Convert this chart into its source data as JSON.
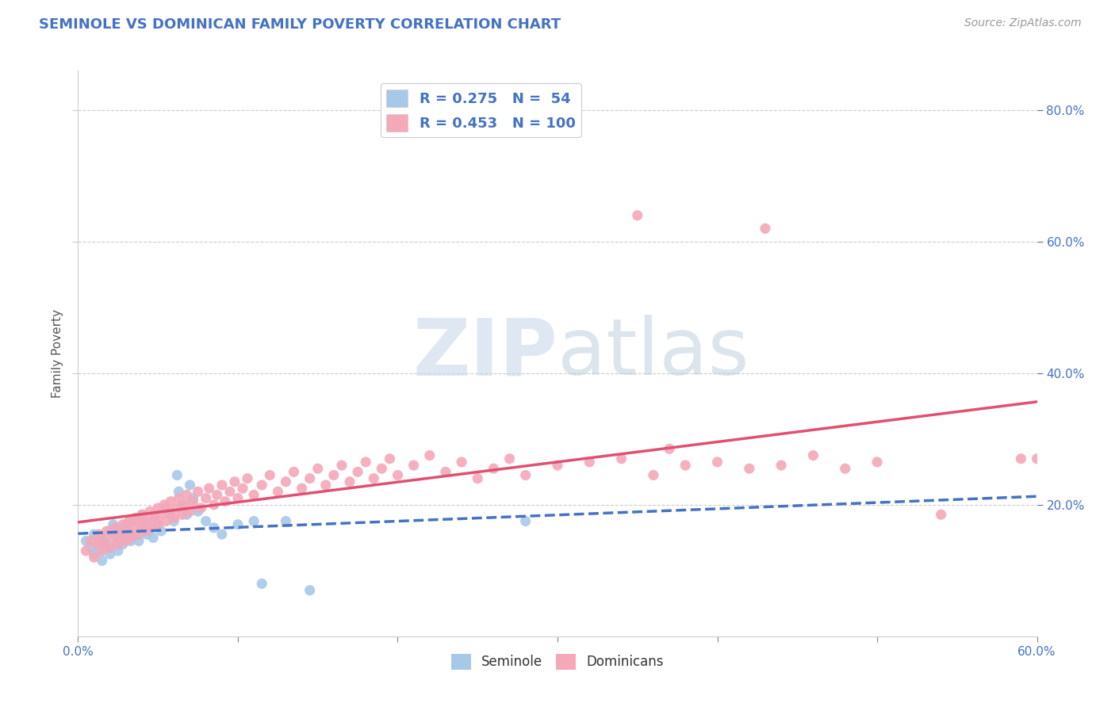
{
  "title": "SEMINOLE VS DOMINICAN FAMILY POVERTY CORRELATION CHART",
  "source": "Source: ZipAtlas.com",
  "ylabel": "Family Poverty",
  "xlim": [
    0.0,
    0.6
  ],
  "ylim": [
    0.0,
    0.86
  ],
  "yticks": [
    0.2,
    0.4,
    0.6,
    0.8
  ],
  "xticks": [
    0.0,
    0.1,
    0.2,
    0.3,
    0.4,
    0.5,
    0.6
  ],
  "seminole_color": "#a8c8e8",
  "dominican_color": "#f4a8b8",
  "trendline_seminole_color": "#4472c4",
  "trendline_dominican_color": "#e05070",
  "watermark_zip": "ZIP",
  "watermark_atlas": "atlas",
  "seminole_R": 0.275,
  "seminole_N": 54,
  "dominican_R": 0.453,
  "dominican_N": 100,
  "seminole_points": [
    [
      0.005,
      0.145
    ],
    [
      0.008,
      0.135
    ],
    [
      0.01,
      0.155
    ],
    [
      0.01,
      0.125
    ],
    [
      0.012,
      0.14
    ],
    [
      0.013,
      0.13
    ],
    [
      0.015,
      0.15
    ],
    [
      0.015,
      0.115
    ],
    [
      0.017,
      0.145
    ],
    [
      0.018,
      0.135
    ],
    [
      0.02,
      0.16
    ],
    [
      0.02,
      0.125
    ],
    [
      0.022,
      0.17
    ],
    [
      0.023,
      0.155
    ],
    [
      0.024,
      0.14
    ],
    [
      0.025,
      0.165
    ],
    [
      0.025,
      0.13
    ],
    [
      0.027,
      0.155
    ],
    [
      0.028,
      0.14
    ],
    [
      0.03,
      0.17
    ],
    [
      0.03,
      0.15
    ],
    [
      0.032,
      0.16
    ],
    [
      0.033,
      0.145
    ],
    [
      0.035,
      0.175
    ],
    [
      0.036,
      0.155
    ],
    [
      0.038,
      0.145
    ],
    [
      0.04,
      0.165
    ],
    [
      0.04,
      0.185
    ],
    [
      0.042,
      0.175
    ],
    [
      0.043,
      0.155
    ],
    [
      0.045,
      0.165
    ],
    [
      0.047,
      0.15
    ],
    [
      0.048,
      0.18
    ],
    [
      0.05,
      0.17
    ],
    [
      0.052,
      0.16
    ],
    [
      0.055,
      0.195
    ],
    [
      0.058,
      0.185
    ],
    [
      0.06,
      0.175
    ],
    [
      0.062,
      0.245
    ],
    [
      0.063,
      0.22
    ],
    [
      0.065,
      0.2
    ],
    [
      0.068,
      0.185
    ],
    [
      0.07,
      0.23
    ],
    [
      0.072,
      0.21
    ],
    [
      0.075,
      0.19
    ],
    [
      0.08,
      0.175
    ],
    [
      0.085,
      0.165
    ],
    [
      0.09,
      0.155
    ],
    [
      0.1,
      0.17
    ],
    [
      0.11,
      0.175
    ],
    [
      0.115,
      0.08
    ],
    [
      0.13,
      0.175
    ],
    [
      0.145,
      0.07
    ],
    [
      0.28,
      0.175
    ]
  ],
  "dominican_points": [
    [
      0.005,
      0.13
    ],
    [
      0.008,
      0.145
    ],
    [
      0.01,
      0.12
    ],
    [
      0.012,
      0.14
    ],
    [
      0.013,
      0.155
    ],
    [
      0.015,
      0.13
    ],
    [
      0.016,
      0.145
    ],
    [
      0.018,
      0.16
    ],
    [
      0.02,
      0.135
    ],
    [
      0.022,
      0.15
    ],
    [
      0.023,
      0.165
    ],
    [
      0.025,
      0.14
    ],
    [
      0.026,
      0.155
    ],
    [
      0.028,
      0.17
    ],
    [
      0.03,
      0.145
    ],
    [
      0.03,
      0.16
    ],
    [
      0.032,
      0.175
    ],
    [
      0.033,
      0.15
    ],
    [
      0.035,
      0.165
    ],
    [
      0.036,
      0.18
    ],
    [
      0.038,
      0.155
    ],
    [
      0.04,
      0.17
    ],
    [
      0.04,
      0.185
    ],
    [
      0.042,
      0.16
    ],
    [
      0.043,
      0.175
    ],
    [
      0.045,
      0.19
    ],
    [
      0.046,
      0.165
    ],
    [
      0.048,
      0.18
    ],
    [
      0.05,
      0.195
    ],
    [
      0.05,
      0.17
    ],
    [
      0.052,
      0.185
    ],
    [
      0.054,
      0.2
    ],
    [
      0.055,
      0.175
    ],
    [
      0.057,
      0.19
    ],
    [
      0.058,
      0.205
    ],
    [
      0.06,
      0.18
    ],
    [
      0.062,
      0.195
    ],
    [
      0.063,
      0.21
    ],
    [
      0.065,
      0.185
    ],
    [
      0.067,
      0.2
    ],
    [
      0.068,
      0.215
    ],
    [
      0.07,
      0.19
    ],
    [
      0.072,
      0.205
    ],
    [
      0.075,
      0.22
    ],
    [
      0.077,
      0.195
    ],
    [
      0.08,
      0.21
    ],
    [
      0.082,
      0.225
    ],
    [
      0.085,
      0.2
    ],
    [
      0.087,
      0.215
    ],
    [
      0.09,
      0.23
    ],
    [
      0.092,
      0.205
    ],
    [
      0.095,
      0.22
    ],
    [
      0.098,
      0.235
    ],
    [
      0.1,
      0.21
    ],
    [
      0.103,
      0.225
    ],
    [
      0.106,
      0.24
    ],
    [
      0.11,
      0.215
    ],
    [
      0.115,
      0.23
    ],
    [
      0.12,
      0.245
    ],
    [
      0.125,
      0.22
    ],
    [
      0.13,
      0.235
    ],
    [
      0.135,
      0.25
    ],
    [
      0.14,
      0.225
    ],
    [
      0.145,
      0.24
    ],
    [
      0.15,
      0.255
    ],
    [
      0.155,
      0.23
    ],
    [
      0.16,
      0.245
    ],
    [
      0.165,
      0.26
    ],
    [
      0.17,
      0.235
    ],
    [
      0.175,
      0.25
    ],
    [
      0.18,
      0.265
    ],
    [
      0.185,
      0.24
    ],
    [
      0.19,
      0.255
    ],
    [
      0.195,
      0.27
    ],
    [
      0.2,
      0.245
    ],
    [
      0.21,
      0.26
    ],
    [
      0.22,
      0.275
    ],
    [
      0.23,
      0.25
    ],
    [
      0.24,
      0.265
    ],
    [
      0.25,
      0.24
    ],
    [
      0.26,
      0.255
    ],
    [
      0.27,
      0.27
    ],
    [
      0.28,
      0.245
    ],
    [
      0.3,
      0.26
    ],
    [
      0.32,
      0.265
    ],
    [
      0.34,
      0.27
    ],
    [
      0.36,
      0.245
    ],
    [
      0.38,
      0.26
    ],
    [
      0.4,
      0.265
    ],
    [
      0.42,
      0.255
    ],
    [
      0.44,
      0.26
    ],
    [
      0.46,
      0.275
    ],
    [
      0.48,
      0.255
    ],
    [
      0.5,
      0.265
    ],
    [
      0.35,
      0.64
    ],
    [
      0.43,
      0.62
    ],
    [
      0.59,
      0.27
    ],
    [
      0.6,
      0.27
    ],
    [
      0.37,
      0.285
    ],
    [
      0.54,
      0.185
    ]
  ]
}
